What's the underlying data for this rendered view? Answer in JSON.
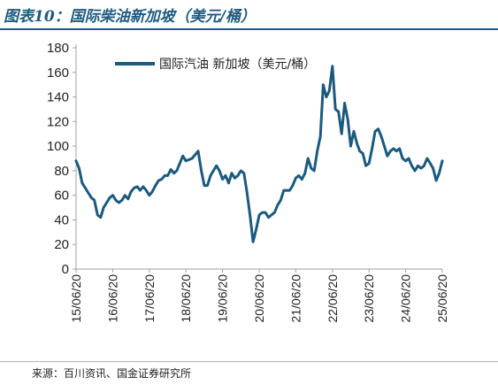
{
  "header": {
    "title": "图表10：国际柴油新加坡（美元/桶）"
  },
  "footer": {
    "source": "来源：百川资讯、国金证券研究所"
  },
  "colors": {
    "line": "#1b5a7e",
    "title": "#1f5a80",
    "axis": "#a0a0a0"
  },
  "chart_data": {
    "type": "line",
    "title": "图表10：国际柴油新加坡（美元/桶）",
    "xlabel": "",
    "ylabel": "",
    "ylim": [
      0,
      180
    ],
    "yticks": [
      0,
      20,
      40,
      60,
      80,
      100,
      120,
      140,
      160,
      180
    ],
    "xticks": [
      "15/06/20",
      "16/06/20",
      "17/06/20",
      "18/06/20",
      "19/06/20",
      "20/06/20",
      "21/06/20",
      "22/06/20",
      "23/06/20",
      "24/06/20",
      "25/06/20"
    ],
    "xlim": [
      "2015-06-20",
      "2025-06-20"
    ],
    "grid": false,
    "legend_position": "top-left",
    "series": [
      {
        "name": "国际汽油 新加坡（美元/桶）",
        "points": [
          [
            "2015-06-20",
            88
          ],
          [
            "2015-07-20",
            82
          ],
          [
            "2015-08-20",
            70
          ],
          [
            "2015-09-20",
            66
          ],
          [
            "2015-10-20",
            62
          ],
          [
            "2015-11-20",
            58
          ],
          [
            "2015-12-20",
            56
          ],
          [
            "2016-01-20",
            44
          ],
          [
            "2016-02-20",
            42
          ],
          [
            "2016-03-20",
            50
          ],
          [
            "2016-04-20",
            54
          ],
          [
            "2016-05-20",
            58
          ],
          [
            "2016-06-20",
            60
          ],
          [
            "2016-07-20",
            56
          ],
          [
            "2016-08-20",
            54
          ],
          [
            "2016-09-20",
            56
          ],
          [
            "2016-10-20",
            60
          ],
          [
            "2016-11-20",
            57
          ],
          [
            "2016-12-20",
            63
          ],
          [
            "2017-01-20",
            66
          ],
          [
            "2017-02-20",
            67
          ],
          [
            "2017-03-20",
            64
          ],
          [
            "2017-04-20",
            67
          ],
          [
            "2017-05-20",
            64
          ],
          [
            "2017-06-20",
            60
          ],
          [
            "2017-07-20",
            63
          ],
          [
            "2017-08-20",
            68
          ],
          [
            "2017-09-20",
            72
          ],
          [
            "2017-10-20",
            73
          ],
          [
            "2017-11-20",
            76
          ],
          [
            "2017-12-20",
            76
          ],
          [
            "2018-01-20",
            81
          ],
          [
            "2018-02-20",
            78
          ],
          [
            "2018-03-20",
            80
          ],
          [
            "2018-04-20",
            86
          ],
          [
            "2018-05-20",
            92
          ],
          [
            "2018-06-20",
            88
          ],
          [
            "2018-07-20",
            89
          ],
          [
            "2018-08-20",
            90
          ],
          [
            "2018-09-20",
            93
          ],
          [
            "2018-10-20",
            96
          ],
          [
            "2018-11-20",
            80
          ],
          [
            "2018-12-20",
            68
          ],
          [
            "2019-01-20",
            68
          ],
          [
            "2019-02-20",
            76
          ],
          [
            "2019-03-20",
            80
          ],
          [
            "2019-04-20",
            84
          ],
          [
            "2019-05-20",
            80
          ],
          [
            "2019-06-20",
            73
          ],
          [
            "2019-07-20",
            76
          ],
          [
            "2019-08-20",
            70
          ],
          [
            "2019-09-20",
            78
          ],
          [
            "2019-10-20",
            74
          ],
          [
            "2019-11-20",
            76
          ],
          [
            "2019-12-20",
            80
          ],
          [
            "2020-01-20",
            78
          ],
          [
            "2020-02-20",
            62
          ],
          [
            "2020-03-20",
            44
          ],
          [
            "2020-04-20",
            22
          ],
          [
            "2020-05-20",
            32
          ],
          [
            "2020-06-20",
            44
          ],
          [
            "2020-07-20",
            46
          ],
          [
            "2020-08-20",
            46
          ],
          [
            "2020-09-20",
            42
          ],
          [
            "2020-10-20",
            44
          ],
          [
            "2020-11-20",
            46
          ],
          [
            "2020-12-20",
            52
          ],
          [
            "2021-01-20",
            56
          ],
          [
            "2021-02-20",
            64
          ],
          [
            "2021-03-20",
            64
          ],
          [
            "2021-04-20",
            64
          ],
          [
            "2021-05-20",
            68
          ],
          [
            "2021-06-20",
            74
          ],
          [
            "2021-07-20",
            76
          ],
          [
            "2021-08-20",
            73
          ],
          [
            "2021-09-20",
            78
          ],
          [
            "2021-10-20",
            90
          ],
          [
            "2021-11-20",
            82
          ],
          [
            "2021-12-20",
            80
          ],
          [
            "2022-01-20",
            96
          ],
          [
            "2022-02-20",
            108
          ],
          [
            "2022-03-20",
            150
          ],
          [
            "2022-04-20",
            140
          ],
          [
            "2022-05-20",
            145
          ],
          [
            "2022-06-20",
            165
          ],
          [
            "2022-07-20",
            130
          ],
          [
            "2022-08-20",
            128
          ],
          [
            "2022-09-20",
            110
          ],
          [
            "2022-10-20",
            135
          ],
          [
            "2022-11-20",
            122
          ],
          [
            "2022-12-20",
            100
          ],
          [
            "2023-01-20",
            112
          ],
          [
            "2023-02-20",
            102
          ],
          [
            "2023-03-20",
            96
          ],
          [
            "2023-04-20",
            94
          ],
          [
            "2023-05-20",
            84
          ],
          [
            "2023-06-20",
            86
          ],
          [
            "2023-07-20",
            98
          ],
          [
            "2023-08-20",
            112
          ],
          [
            "2023-09-20",
            114
          ],
          [
            "2023-10-20",
            108
          ],
          [
            "2023-11-20",
            100
          ],
          [
            "2023-12-20",
            92
          ],
          [
            "2024-01-20",
            96
          ],
          [
            "2024-02-20",
            98
          ],
          [
            "2024-03-20",
            96
          ],
          [
            "2024-04-20",
            98
          ],
          [
            "2024-05-20",
            90
          ],
          [
            "2024-06-20",
            88
          ],
          [
            "2024-07-20",
            90
          ],
          [
            "2024-08-20",
            84
          ],
          [
            "2024-09-20",
            80
          ],
          [
            "2024-10-20",
            84
          ],
          [
            "2024-11-20",
            82
          ],
          [
            "2024-12-20",
            84
          ],
          [
            "2025-01-20",
            90
          ],
          [
            "2025-02-20",
            86
          ],
          [
            "2025-03-20",
            82
          ],
          [
            "2025-04-20",
            72
          ],
          [
            "2025-05-20",
            78
          ],
          [
            "2025-06-20",
            88
          ]
        ]
      }
    ]
  }
}
